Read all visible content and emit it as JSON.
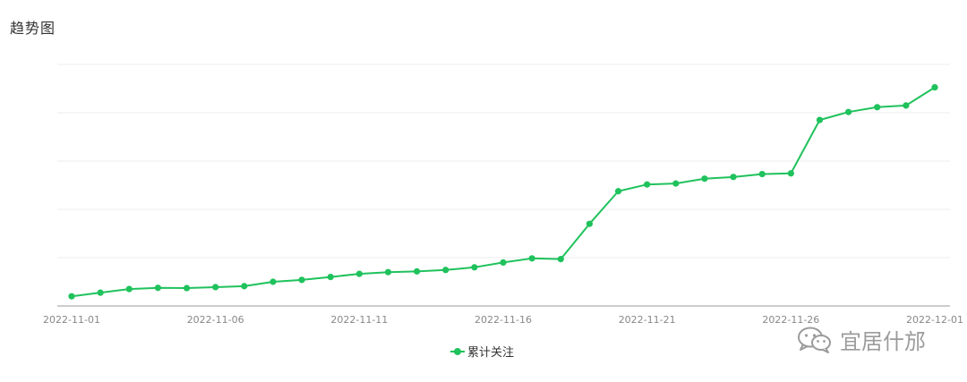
{
  "title": "趋势图",
  "watermark_text": "宜居什邡",
  "icons": {
    "watermark": "wechat-icon"
  },
  "colors": {
    "series": "#1fc25c",
    "axis": "#cccccc",
    "grid": "#eeeeee",
    "tick_text": "#888888"
  },
  "chart_data": {
    "type": "line",
    "title": "趋势图",
    "xlabel": "",
    "ylabel": "",
    "y_axis_labels_hidden": true,
    "grid": true,
    "legend_position": "bottom",
    "x": [
      "2022-11-01",
      "2022-11-02",
      "2022-11-03",
      "2022-11-04",
      "2022-11-05",
      "2022-11-06",
      "2022-11-07",
      "2022-11-08",
      "2022-11-09",
      "2022-11-10",
      "2022-11-11",
      "2022-11-12",
      "2022-11-13",
      "2022-11-14",
      "2022-11-15",
      "2022-11-16",
      "2022-11-17",
      "2022-11-18",
      "2022-11-19",
      "2022-11-20",
      "2022-11-21",
      "2022-11-22",
      "2022-11-23",
      "2022-11-24",
      "2022-11-25",
      "2022-11-26",
      "2022-11-27",
      "2022-11-28",
      "2022-11-29",
      "2022-11-30",
      "2022-12-01"
    ],
    "x_tick_labels": [
      "2022-11-01",
      "2022-11-06",
      "2022-11-11",
      "2022-11-16",
      "2022-11-21",
      "2022-11-26",
      "2022-12-01"
    ],
    "ylim": [
      0,
      100
    ],
    "series": [
      {
        "name": "累计关注",
        "values": [
          4,
          5.5,
          7,
          7.5,
          7.4,
          7.8,
          8.2,
          10,
          10.8,
          12,
          13.3,
          14,
          14.3,
          14.9,
          16,
          18,
          19.7,
          19.4,
          34,
          47.5,
          50.3,
          50.7,
          52.7,
          53.4,
          54.6,
          54.9,
          77,
          80.3,
          82.3,
          83,
          90.5
        ]
      }
    ]
  }
}
